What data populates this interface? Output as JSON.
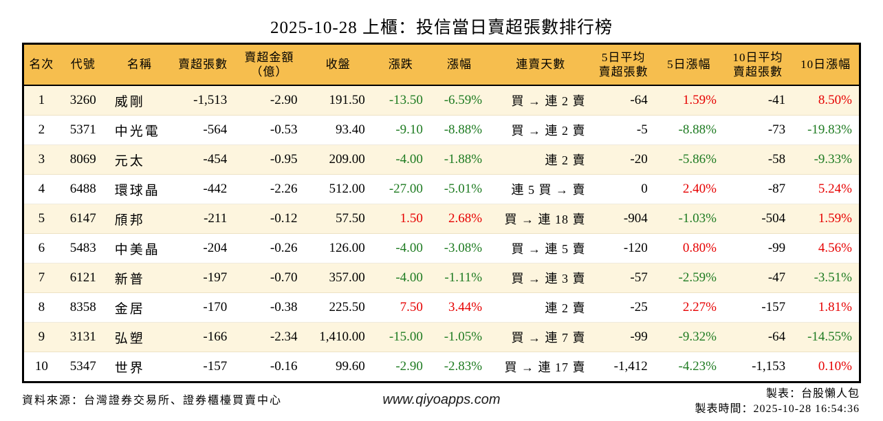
{
  "title": "2025-10-28 上櫃：投信當日賣超張數排行榜",
  "colors": {
    "up_red": "#e60000",
    "down_green": "#1e7b21",
    "header_bg": "#f6be4e",
    "row_alt_bg": "#fdf5de",
    "border": "#000000"
  },
  "table": {
    "columns": [
      {
        "field": "rank",
        "label": "名次",
        "colored": false
      },
      {
        "field": "code",
        "label": "代號",
        "colored": false
      },
      {
        "field": "name",
        "label": "名稱",
        "colored": false
      },
      {
        "field": "net_sell",
        "label": "賣超張數",
        "colored": false
      },
      {
        "field": "amount",
        "label": "賣超金額\n（億）",
        "colored": false
      },
      {
        "field": "close",
        "label": "收盤",
        "colored": false
      },
      {
        "field": "change",
        "label": "漲跌",
        "colored": true
      },
      {
        "field": "pct",
        "label": "漲幅",
        "colored": true
      },
      {
        "field": "streak",
        "label": "連賣天數",
        "colored": false
      },
      {
        "field": "avg5",
        "label": "5日平均\n賣超張數",
        "colored": false
      },
      {
        "field": "pct5",
        "label": "5日漲幅",
        "colored": true
      },
      {
        "field": "avg10",
        "label": "10日平均\n賣超張數",
        "colored": false
      },
      {
        "field": "pct10",
        "label": "10日漲幅",
        "colored": true
      }
    ],
    "rows": [
      {
        "rank": "1",
        "code": "3260",
        "name": "威剛",
        "net_sell": "-1,513",
        "amount": "-2.90",
        "close": "191.50",
        "change": "-13.50",
        "pct": "-6.59%",
        "streak": "買 → 連 2 賣",
        "avg5": "-64",
        "pct5": "1.59%",
        "avg10": "-41",
        "pct10": "8.50%"
      },
      {
        "rank": "2",
        "code": "5371",
        "name": "中光電",
        "net_sell": "-564",
        "amount": "-0.53",
        "close": "93.40",
        "change": "-9.10",
        "pct": "-8.88%",
        "streak": "買 → 連 2 賣",
        "avg5": "-5",
        "pct5": "-8.88%",
        "avg10": "-73",
        "pct10": "-19.83%"
      },
      {
        "rank": "3",
        "code": "8069",
        "name": "元太",
        "net_sell": "-454",
        "amount": "-0.95",
        "close": "209.00",
        "change": "-4.00",
        "pct": "-1.88%",
        "streak": "連 2 賣",
        "avg5": "-20",
        "pct5": "-5.86%",
        "avg10": "-58",
        "pct10": "-9.33%"
      },
      {
        "rank": "4",
        "code": "6488",
        "name": "環球晶",
        "net_sell": "-442",
        "amount": "-2.26",
        "close": "512.00",
        "change": "-27.00",
        "pct": "-5.01%",
        "streak": "連 5 買 → 賣",
        "avg5": "0",
        "pct5": "2.40%",
        "avg10": "-87",
        "pct10": "5.24%"
      },
      {
        "rank": "5",
        "code": "6147",
        "name": "頎邦",
        "net_sell": "-211",
        "amount": "-0.12",
        "close": "57.50",
        "change": "1.50",
        "pct": "2.68%",
        "streak": "買 → 連 18 賣",
        "avg5": "-904",
        "pct5": "-1.03%",
        "avg10": "-504",
        "pct10": "1.59%"
      },
      {
        "rank": "6",
        "code": "5483",
        "name": "中美晶",
        "net_sell": "-204",
        "amount": "-0.26",
        "close": "126.00",
        "change": "-4.00",
        "pct": "-3.08%",
        "streak": "買 → 連 5 賣",
        "avg5": "-120",
        "pct5": "0.80%",
        "avg10": "-99",
        "pct10": "4.56%"
      },
      {
        "rank": "7",
        "code": "6121",
        "name": "新普",
        "net_sell": "-197",
        "amount": "-0.70",
        "close": "357.00",
        "change": "-4.00",
        "pct": "-1.11%",
        "streak": "買 → 連 3 賣",
        "avg5": "-57",
        "pct5": "-2.59%",
        "avg10": "-47",
        "pct10": "-3.51%"
      },
      {
        "rank": "8",
        "code": "8358",
        "name": "金居",
        "net_sell": "-170",
        "amount": "-0.38",
        "close": "225.50",
        "change": "7.50",
        "pct": "3.44%",
        "streak": "連 2 賣",
        "avg5": "-25",
        "pct5": "2.27%",
        "avg10": "-157",
        "pct10": "1.81%"
      },
      {
        "rank": "9",
        "code": "3131",
        "name": "弘塑",
        "net_sell": "-166",
        "amount": "-2.34",
        "close": "1,410.00",
        "change": "-15.00",
        "pct": "-1.05%",
        "streak": "買 → 連 7 賣",
        "avg5": "-99",
        "pct5": "-9.32%",
        "avg10": "-64",
        "pct10": "-14.55%"
      },
      {
        "rank": "10",
        "code": "5347",
        "name": "世界",
        "net_sell": "-157",
        "amount": "-0.16",
        "close": "99.60",
        "change": "-2.90",
        "pct": "-2.83%",
        "streak": "買 → 連 17 賣",
        "avg5": "-1,412",
        "pct5": "-4.23%",
        "avg10": "-1,153",
        "pct10": "0.10%"
      }
    ]
  },
  "footer": {
    "source": "資料來源：台灣證券交易所、證券櫃檯買賣中心",
    "website": "www.qiyoapps.com",
    "made_by": "製表：台股懶人包",
    "made_time": "製表時間：2025-10-28 16:54:36"
  }
}
